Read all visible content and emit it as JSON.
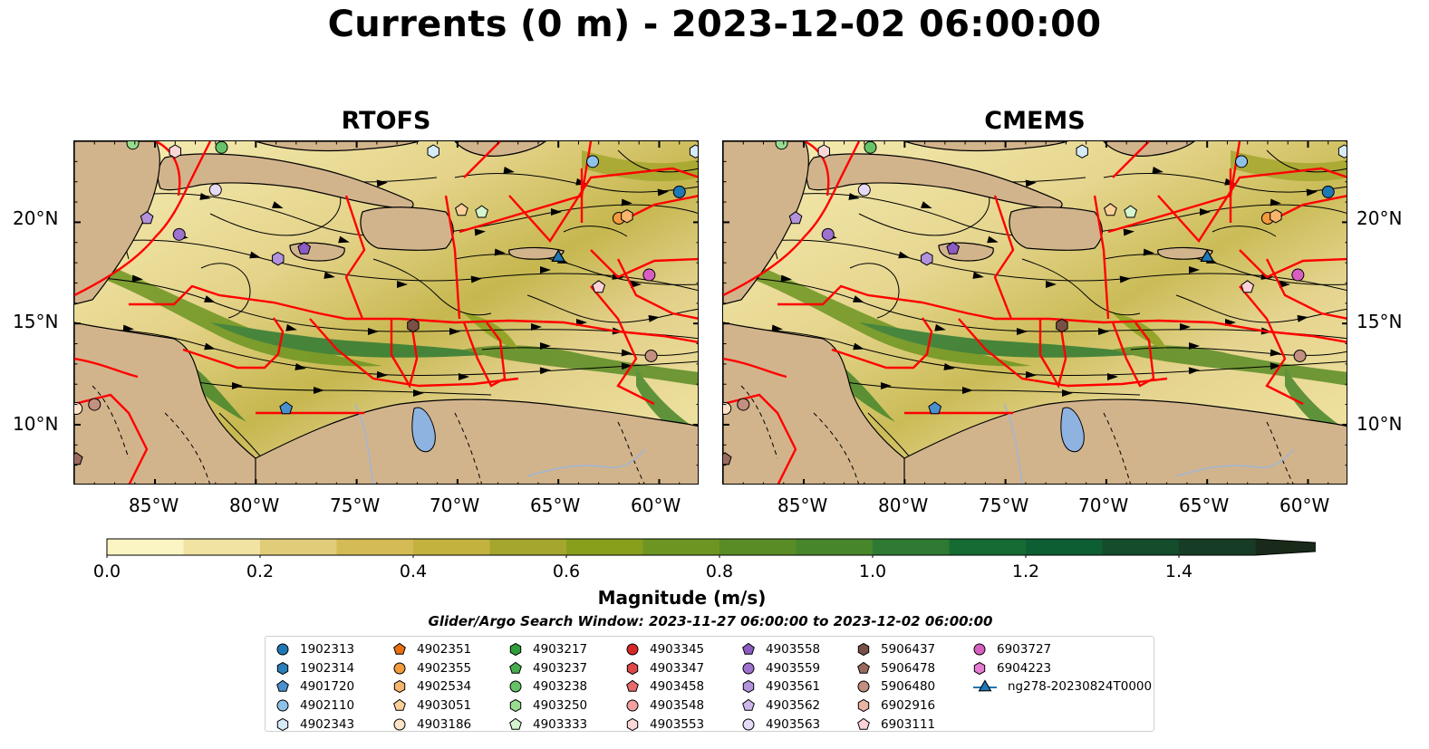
{
  "title": "Currents (0 m) - 2023-12-02 06:00:00",
  "panels": [
    {
      "title": "RTOFS"
    },
    {
      "title": "CMEMS"
    }
  ],
  "map_extent": {
    "lon_min": -89,
    "lon_max": -58,
    "lat_min": 7,
    "lat_max": 24
  },
  "lat_ticks": [
    "20°N",
    "15°N",
    "10°N"
  ],
  "lon_ticks": [
    "85°W",
    "80°W",
    "75°W",
    "70°W",
    "65°W",
    "60°W"
  ],
  "colorbar": {
    "label": "Magnitude (m/s)",
    "range": [
      0.0,
      1.5
    ],
    "extend": "max",
    "ticks": [
      "0.0",
      "0.2",
      "0.4",
      "0.6",
      "0.8",
      "1.0",
      "1.2",
      "1.4"
    ],
    "colors": [
      "#fbf5c3",
      "#f1e3a1",
      "#e1cc79",
      "#d4bb55",
      "#c3b23e",
      "#a4a62d",
      "#889f1c",
      "#6d9522",
      "#5a8c25",
      "#47862b",
      "#2f7a33",
      "#166b33",
      "#0d5e33",
      "#154c2c",
      "#173c25",
      "#1a2a1a"
    ]
  },
  "search_window": "Glider/Argo Search Window: 2023-11-27 06:00:00 to 2023-12-02 06:00:00",
  "colors": {
    "land": "#d2b48c",
    "lake": "#8fb3e0",
    "eez_line": "#ff0000",
    "streamline": "#000000"
  },
  "legend": [
    {
      "label": "1902313",
      "shape": "circle",
      "color": "#1f77b4"
    },
    {
      "label": "1902314",
      "shape": "hexagon",
      "color": "#2a7fb8"
    },
    {
      "label": "4901720",
      "shape": "pentagon",
      "color": "#4a90cf"
    },
    {
      "label": "4902110",
      "shape": "circle",
      "color": "#8ec2e8"
    },
    {
      "label": "4902343",
      "shape": "hexagon",
      "color": "#d6eaf8"
    },
    {
      "label": "4902351",
      "shape": "pentagon",
      "color": "#e8700e"
    },
    {
      "label": "4902355",
      "shape": "circle",
      "color": "#f39a3d"
    },
    {
      "label": "4902534",
      "shape": "hexagon",
      "color": "#f7b56e"
    },
    {
      "label": "4903051",
      "shape": "pentagon",
      "color": "#fbcf98"
    },
    {
      "label": "4903186",
      "shape": "circle",
      "color": "#fde3c7"
    },
    {
      "label": "4903217",
      "shape": "hexagon",
      "color": "#2f9e39"
    },
    {
      "label": "4903237",
      "shape": "pentagon",
      "color": "#46ad4d"
    },
    {
      "label": "4903238",
      "shape": "circle",
      "color": "#66c266"
    },
    {
      "label": "4903250",
      "shape": "hexagon",
      "color": "#98dc90"
    },
    {
      "label": "4903333",
      "shape": "pentagon",
      "color": "#d4f5cf"
    },
    {
      "label": "4903345",
      "shape": "circle",
      "color": "#d62728"
    },
    {
      "label": "4903347",
      "shape": "hexagon",
      "color": "#e04848"
    },
    {
      "label": "4903458",
      "shape": "pentagon",
      "color": "#e86a6a"
    },
    {
      "label": "4903548",
      "shape": "circle",
      "color": "#f2a0a0"
    },
    {
      "label": "4903553",
      "shape": "hexagon",
      "color": "#fbd8d8"
    },
    {
      "label": "4903558",
      "shape": "pentagon",
      "color": "#8c5cc4"
    },
    {
      "label": "4903559",
      "shape": "circle",
      "color": "#9e72cf"
    },
    {
      "label": "4903561",
      "shape": "hexagon",
      "color": "#b293dc"
    },
    {
      "label": "4903562",
      "shape": "pentagon",
      "color": "#cdb6ea"
    },
    {
      "label": "4903563",
      "shape": "circle",
      "color": "#e6dbf7"
    },
    {
      "label": "5906437",
      "shape": "hexagon",
      "color": "#7a4f45"
    },
    {
      "label": "5906478",
      "shape": "pentagon",
      "color": "#9a6a5e"
    },
    {
      "label": "5906480",
      "shape": "circle",
      "color": "#c28f80"
    },
    {
      "label": "6902916",
      "shape": "hexagon",
      "color": "#e8b4a4"
    },
    {
      "label": "6903111",
      "shape": "pentagon",
      "color": "#fbd2d8"
    },
    {
      "label": "6903727",
      "shape": "circle",
      "color": "#d85fc2"
    },
    {
      "label": "6904223",
      "shape": "hexagon",
      "color": "#e77ad3"
    },
    {
      "label": "ng278-20230824T0000",
      "shape": "triangle-line",
      "color": "#1f77b4"
    }
  ],
  "floats": [
    {
      "lon": -86.1,
      "lat": 23.9,
      "shape": "circle",
      "color": "#98dc90"
    },
    {
      "lon": -84.0,
      "lat": 23.5,
      "shape": "hexagon",
      "color": "#fbd8d8"
    },
    {
      "lon": -81.7,
      "lat": 23.7,
      "shape": "circle",
      "color": "#66c266"
    },
    {
      "lon": -71.2,
      "lat": 23.5,
      "shape": "hexagon",
      "color": "#d6eaf8"
    },
    {
      "lon": -63.3,
      "lat": 23.0,
      "shape": "circle",
      "color": "#8ec2e8"
    },
    {
      "lon": -59.0,
      "lat": 21.5,
      "shape": "circle",
      "color": "#1f77b4"
    },
    {
      "lon": -82.0,
      "lat": 21.6,
      "shape": "circle",
      "color": "#e6dbf7"
    },
    {
      "lon": -85.4,
      "lat": 20.2,
      "shape": "pentagon",
      "color": "#b293dc"
    },
    {
      "lon": -83.8,
      "lat": 19.4,
      "shape": "circle",
      "color": "#9e72cf"
    },
    {
      "lon": -77.6,
      "lat": 18.7,
      "shape": "pentagon",
      "color": "#8c5cc4"
    },
    {
      "lon": -78.9,
      "lat": 18.2,
      "shape": "hexagon",
      "color": "#b293dc"
    },
    {
      "lon": -69.8,
      "lat": 20.6,
      "shape": "pentagon",
      "color": "#fbcf98"
    },
    {
      "lon": -68.8,
      "lat": 20.5,
      "shape": "pentagon",
      "color": "#d4f5cf"
    },
    {
      "lon": -62.0,
      "lat": 20.2,
      "shape": "circle",
      "color": "#f39a3d"
    },
    {
      "lon": -61.6,
      "lat": 20.3,
      "shape": "hexagon",
      "color": "#f7b56e"
    },
    {
      "lon": -60.5,
      "lat": 17.4,
      "shape": "circle",
      "color": "#d85fc2"
    },
    {
      "lon": -63.0,
      "lat": 16.8,
      "shape": "pentagon",
      "color": "#fbd2d8"
    },
    {
      "lon": -72.2,
      "lat": 14.9,
      "shape": "hexagon",
      "color": "#7a4f45"
    },
    {
      "lon": -60.4,
      "lat": 13.4,
      "shape": "circle",
      "color": "#c28f80"
    },
    {
      "lon": -78.5,
      "lat": 10.8,
      "shape": "pentagon",
      "color": "#4a90cf"
    },
    {
      "lon": -88.9,
      "lat": 10.8,
      "shape": "circle",
      "color": "#fde3c7"
    },
    {
      "lon": -88.0,
      "lat": 11.0,
      "shape": "circle",
      "color": "#c28f80"
    },
    {
      "lon": -88.9,
      "lat": 8.3,
      "shape": "pentagon",
      "color": "#9a6a5e"
    },
    {
      "lon": -58.2,
      "lat": 23.5,
      "shape": "hexagon",
      "color": "#d6eaf8"
    }
  ],
  "glider": {
    "lon": -65.0,
    "lat": 18.3
  }
}
